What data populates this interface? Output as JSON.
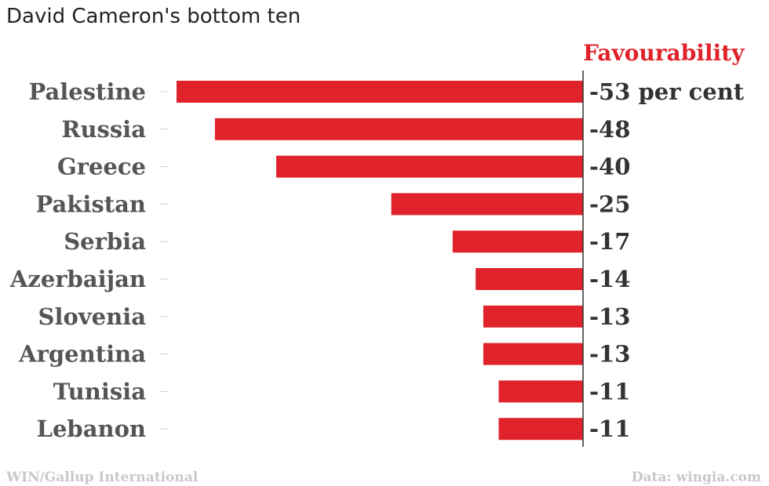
{
  "chart_data": {
    "type": "bar",
    "orientation": "horizontal",
    "title": "David Cameron's bottom ten",
    "value_header": "Favourability",
    "categories": [
      "Palestine",
      "Russia",
      "Greece",
      "Pakistan",
      "Serbia",
      "Azerbaijan",
      "Slovenia",
      "Argentina",
      "Tunisia",
      "Lebanon"
    ],
    "values": [
      -53,
      -48,
      -40,
      -25,
      -17,
      -14,
      -13,
      -13,
      -11,
      -11
    ],
    "value_labels": [
      "-53 per cent",
      "-48",
      "-40",
      "-25",
      "-17",
      "-14",
      "-13",
      "-13",
      "-11",
      "-11"
    ],
    "bar_color": "#e0222a",
    "xlim": [
      -53,
      0
    ]
  },
  "footer": {
    "source_left": "WIN/Gallup International",
    "source_right": "Data: wingia.com"
  }
}
